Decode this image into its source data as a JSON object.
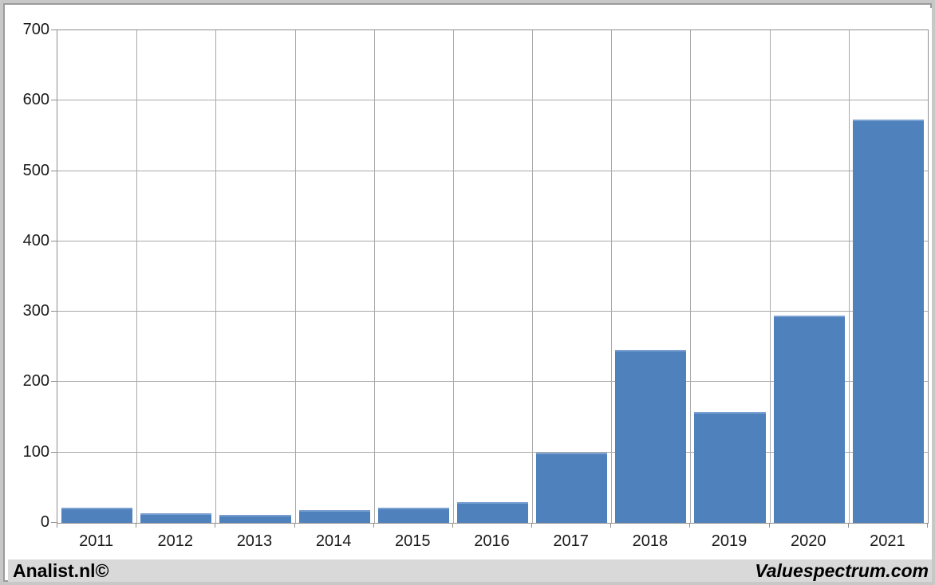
{
  "chart_data": {
    "type": "bar",
    "title": "",
    "xlabel": "",
    "ylabel": "",
    "categories": [
      "2011",
      "2012",
      "2013",
      "2014",
      "2015",
      "2016",
      "2017",
      "2018",
      "2019",
      "2020",
      "2021"
    ],
    "values": [
      21,
      14,
      11,
      18,
      21,
      30,
      100,
      246,
      158,
      294,
      573
    ],
    "ylim": [
      0,
      700
    ],
    "yticks": [
      0,
      100,
      200,
      300,
      400,
      500,
      600,
      700
    ],
    "grid": true,
    "legend": "none",
    "bar_color": "#4f81bd"
  },
  "colors": {
    "bar": "#4f81bd",
    "bar_top_edge": "#7aa0d2",
    "gridline": "#a9a9a9",
    "axis": "#8f8f8f",
    "footer_background": "#d9d9d9",
    "frame_outer": "#c8c8c8",
    "frame_inner": "#9b9b9b",
    "text": "#1a1a1a"
  },
  "footer": {
    "left_text": "Analist.nl©",
    "right_text": "Valuespectrum.com"
  }
}
